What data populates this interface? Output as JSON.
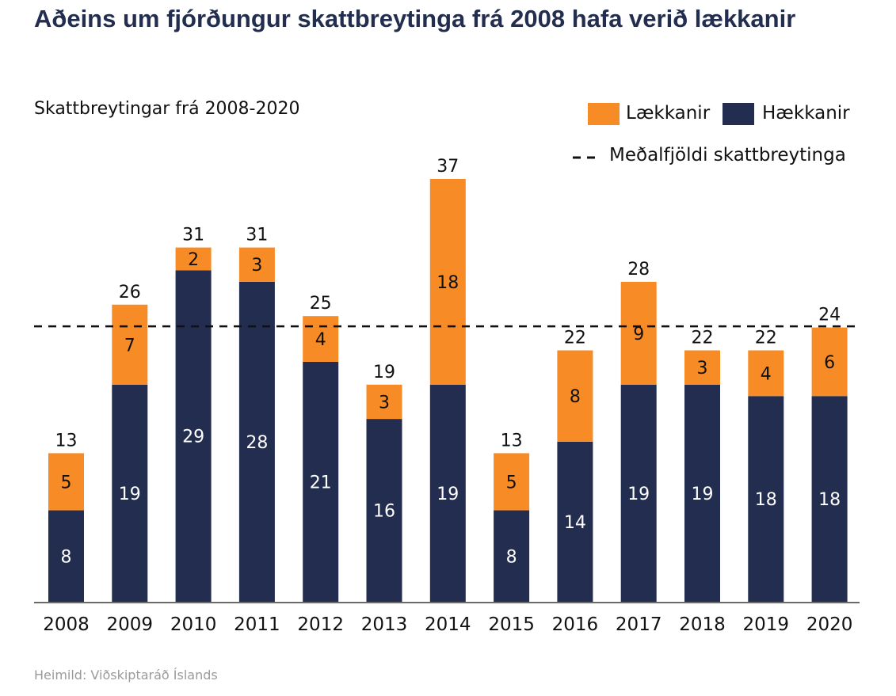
{
  "header": {
    "title": "Aðeins um fjórðungur skattbreytinga frá 2008 hafa verið lækkanir",
    "subtitle": "Skattbreytingar frá 2008-2020"
  },
  "footer": {
    "source": "Heimild: Viðskiptaráð Íslands"
  },
  "colors": {
    "lower": "#f78b26",
    "raise": "#222d4f",
    "text": "#111111",
    "avg_line": "#111111"
  },
  "chart_data": {
    "type": "bar",
    "stacked": true,
    "title": "Aðeins um fjórðungur skattbreytinga frá 2008 hafa verið lækkanir",
    "subtitle": "Skattbreytingar frá 2008-2020",
    "xlabel": "",
    "ylabel": "",
    "categories": [
      "2008",
      "2009",
      "2010",
      "2011",
      "2012",
      "2013",
      "2014",
      "2015",
      "2016",
      "2017",
      "2018",
      "2019",
      "2020"
    ],
    "series": [
      {
        "name": "Hækkanir",
        "values": [
          8,
          19,
          29,
          28,
          21,
          16,
          19,
          8,
          14,
          19,
          19,
          18,
          18
        ]
      },
      {
        "name": "Lækkanir",
        "values": [
          5,
          7,
          2,
          3,
          4,
          3,
          18,
          5,
          8,
          9,
          3,
          4,
          6
        ]
      }
    ],
    "totals": [
      13,
      26,
      31,
      31,
      25,
      19,
      37,
      13,
      22,
      28,
      22,
      22,
      24
    ],
    "reference_line": {
      "name": "Meðalfjöldi skattbreytinga",
      "value": 24.1,
      "style": "dashed"
    },
    "legend": [
      "Lækkanir",
      "Hækkanir",
      "Meðalfjöldi skattbreytinga"
    ],
    "legend_position": "top-right",
    "ylim": [
      0,
      37
    ],
    "grid": false,
    "y_axis_visible": false,
    "source": "Heimild: Viðskiptaráð Íslands"
  }
}
